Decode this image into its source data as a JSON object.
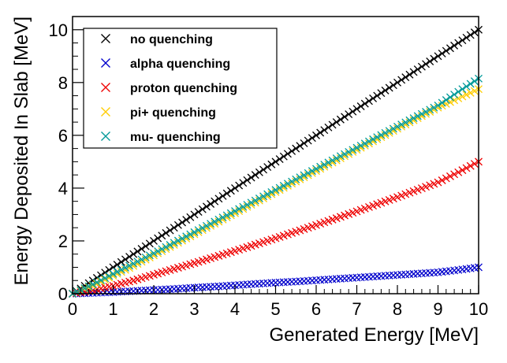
{
  "chart_data": {
    "type": "scatter",
    "xlabel": "Generated Energy [MeV]",
    "ylabel": "Energy Deposited In Slab [MeV]",
    "xlim": [
      0,
      10
    ],
    "ylim": [
      0,
      10.5
    ],
    "x_ticks": [
      "0",
      "1",
      "2",
      "3",
      "4",
      "5",
      "6",
      "7",
      "8",
      "9",
      "10"
    ],
    "y_ticks": [
      "0",
      "2",
      "4",
      "6",
      "8",
      "10"
    ],
    "grid": false,
    "legend_position": "top-left",
    "marker": "x",
    "x": [
      0,
      0.5,
      1,
      1.5,
      2,
      2.5,
      3,
      3.5,
      4,
      4.5,
      5,
      5.5,
      6,
      6.5,
      7,
      7.5,
      8,
      8.5,
      9,
      9.5,
      10
    ],
    "series": [
      {
        "name": "no quenching",
        "color": "#000000",
        "values": [
          0,
          0.5,
          1.0,
          1.5,
          2.0,
          2.5,
          3.0,
          3.5,
          4.0,
          4.5,
          5.0,
          5.5,
          6.0,
          6.5,
          7.0,
          7.5,
          8.0,
          8.5,
          9.0,
          9.5,
          10.0
        ]
      },
      {
        "name": "alpha quenching",
        "color": "#0000cc",
        "values": [
          0,
          0.03,
          0.06,
          0.1,
          0.14,
          0.18,
          0.23,
          0.27,
          0.32,
          0.37,
          0.42,
          0.46,
          0.51,
          0.56,
          0.61,
          0.66,
          0.71,
          0.76,
          0.81,
          0.9,
          1.0
        ]
      },
      {
        "name": "proton quenching",
        "color": "#ee0000",
        "values": [
          0,
          0.13,
          0.3,
          0.5,
          0.72,
          0.94,
          1.16,
          1.39,
          1.62,
          1.86,
          2.1,
          2.35,
          2.6,
          2.86,
          3.12,
          3.39,
          3.66,
          3.94,
          4.22,
          4.6,
          5.0
        ]
      },
      {
        "name": "pi+ quenching",
        "color": "#ffcc00",
        "values": [
          0,
          0.3,
          0.68,
          1.05,
          1.45,
          1.85,
          2.25,
          2.65,
          3.05,
          3.45,
          3.85,
          4.25,
          4.65,
          5.05,
          5.45,
          5.85,
          6.25,
          6.65,
          7.05,
          7.4,
          7.75
        ]
      },
      {
        "name": "mu- quenching",
        "color": "#009999",
        "values": [
          0,
          0.35,
          0.75,
          1.14,
          1.53,
          1.93,
          2.33,
          2.73,
          3.13,
          3.53,
          3.93,
          4.33,
          4.73,
          5.13,
          5.53,
          5.93,
          6.33,
          6.73,
          7.13,
          7.65,
          8.15
        ]
      }
    ]
  }
}
